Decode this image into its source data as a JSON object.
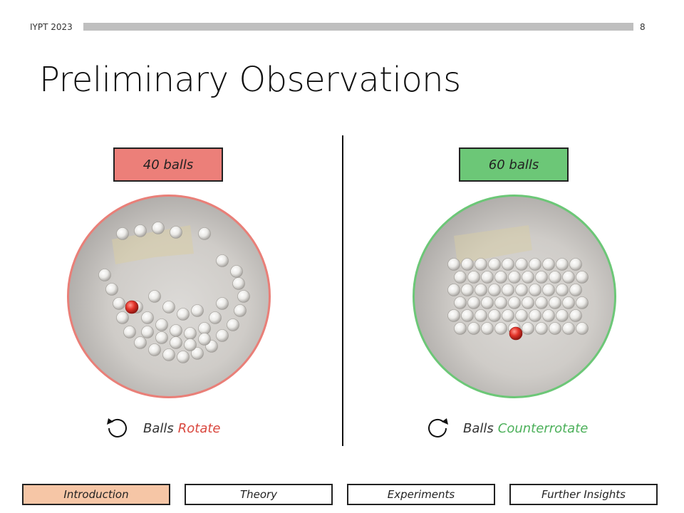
{
  "header": {
    "label": "IYPT 2023",
    "page_number": "8"
  },
  "title": "Preliminary Observations",
  "panels": {
    "left": {
      "count_label": "40 balls",
      "caption_prefix": "Balls",
      "caption_emphasis": "Rotate",
      "accent_color": "#e97f78",
      "box_color": "#ec7f79",
      "icon": "rotate-counterclockwise-icon"
    },
    "right": {
      "count_label": "60 balls",
      "caption_prefix": "Balls",
      "caption_emphasis": "Counterrotate",
      "accent_color": "#6cc777",
      "box_color": "#6cc777",
      "icon": "rotate-clockwise-icon"
    }
  },
  "nav": {
    "items": [
      {
        "label": "Introduction",
        "active": true
      },
      {
        "label": "Theory",
        "active": false
      },
      {
        "label": "Experiments",
        "active": false
      },
      {
        "label": "Further Insights",
        "active": false
      }
    ],
    "active_color": "#f6c6a6"
  }
}
